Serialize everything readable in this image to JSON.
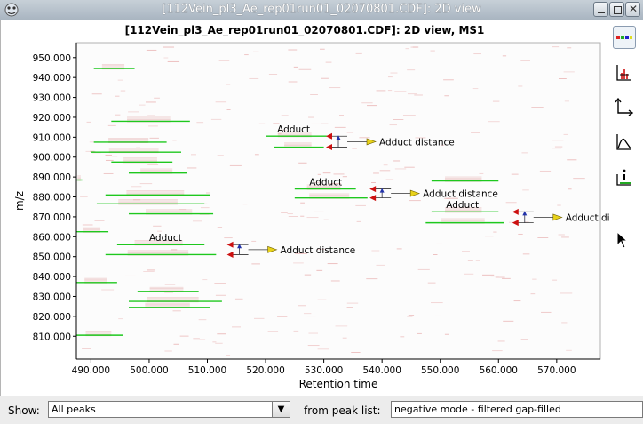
{
  "window": {
    "title": "[112Vein_pl3_Ae_rep01run01_02070801.CDF]: 2D view"
  },
  "plot": {
    "title": "[112Vein_pl3_Ae_rep01run01_02070801.CDF]: 2D view, MS1"
  },
  "chart_data": {
    "type": "scatter",
    "title": "[112Vein_pl3_Ae_rep01run01_02070801.CDF]: 2D view, MS1",
    "xlabel": "Retention time",
    "ylabel": "m/z",
    "xlim": [
      487.5,
      577.5
    ],
    "ylim": [
      798.5,
      957.5
    ],
    "x_ticks": [
      "490.000",
      "500.000",
      "510.000",
      "520.000",
      "530.000",
      "540.000",
      "550.000",
      "560.000",
      "570.000"
    ],
    "y_ticks": [
      "810.000",
      "820.000",
      "830.000",
      "840.000",
      "850.000",
      "860.000",
      "870.000",
      "880.000",
      "890.000",
      "900.000",
      "910.000",
      "920.000",
      "930.000",
      "940.000",
      "950.000"
    ],
    "peaks": [
      {
        "rt": [
          490.5,
          497.5
        ],
        "mz": 944.5
      },
      {
        "rt": [
          493.5,
          507.0
        ],
        "mz": 918.0
      },
      {
        "rt": [
          490.5,
          503.0
        ],
        "mz": 907.5
      },
      {
        "rt": [
          490.0,
          505.5
        ],
        "mz": 902.5
      },
      {
        "rt": [
          493.5,
          504.0
        ],
        "mz": 897.5
      },
      {
        "rt": [
          496.5,
          506.5
        ],
        "mz": 892.0
      },
      {
        "rt": [
          487.5,
          488.5
        ],
        "mz": 888.5
      },
      {
        "rt": [
          492.5,
          510.5
        ],
        "mz": 881.0
      },
      {
        "rt": [
          491.0,
          509.5
        ],
        "mz": 876.5
      },
      {
        "rt": [
          496.5,
          511.0
        ],
        "mz": 871.5
      },
      {
        "rt": [
          487.5,
          493.0
        ],
        "mz": 862.5
      },
      {
        "rt": [
          494.5,
          509.5
        ],
        "mz": 856.0
      },
      {
        "rt": [
          492.5,
          511.5
        ],
        "mz": 851.0
      },
      {
        "rt": [
          487.5,
          494.5
        ],
        "mz": 837.0
      },
      {
        "rt": [
          498.0,
          508.5
        ],
        "mz": 832.5
      },
      {
        "rt": [
          496.5,
          512.5
        ],
        "mz": 827.5
      },
      {
        "rt": [
          496.5,
          510.5
        ],
        "mz": 824.5
      },
      {
        "rt": [
          487.5,
          495.5
        ],
        "mz": 810.5
      },
      {
        "rt": [
          520.0,
          530.5
        ],
        "mz": 910.5
      },
      {
        "rt": [
          521.5,
          530.0
        ],
        "mz": 905.0
      },
      {
        "rt": [
          525.0,
          535.5
        ],
        "mz": 884.0
      },
      {
        "rt": [
          525.0,
          537.5
        ],
        "mz": 879.5
      },
      {
        "rt": [
          548.5,
          560.0
        ],
        "mz": 888.0
      },
      {
        "rt": [
          548.5,
          560.0
        ],
        "mz": 872.5
      },
      {
        "rt": [
          547.5,
          561.0
        ],
        "mz": 867.0
      }
    ],
    "adducts": [
      {
        "label": "Adduct",
        "label_rt": 522.0,
        "label_mz": 911.5,
        "distance_label": "Adduct distance",
        "arrow_rt": 532.5,
        "mz_high": 910.5,
        "mz_low": 905.0
      },
      {
        "label": "Adduct",
        "label_rt": 527.5,
        "label_mz": 885.0,
        "distance_label": "Adduct distance",
        "arrow_rt": 540.0,
        "mz_high": 884.0,
        "mz_low": 879.5
      },
      {
        "label": "Adduct",
        "label_rt": 500.0,
        "label_mz": 857.0,
        "distance_label": "Adduct distance",
        "arrow_rt": 515.5,
        "mz_high": 856.0,
        "mz_low": 851.0
      },
      {
        "label": "Adduct",
        "label_rt": 551.0,
        "label_mz": 873.5,
        "distance_label": "Adduct distance",
        "arrow_rt": 564.5,
        "mz_high": 872.5,
        "mz_low": 867.0
      }
    ],
    "colors": {
      "peak": "#1ec81e",
      "background_signal": "#e6a5a5",
      "arrow": "#cc1010",
      "distance_arrow": "#e8d21a",
      "axis": "#000000"
    }
  },
  "toolbar": {
    "icons": [
      "color-palette-icon",
      "isotope-peaks-icon",
      "axes-icon",
      "spectrum-icon",
      "peak-info-icon"
    ]
  },
  "bottom": {
    "show_label": "Show:",
    "show_value": "All peaks",
    "peaklist_label": "from peak list:",
    "peaklist_value": "negative mode - filtered gap-filled"
  }
}
